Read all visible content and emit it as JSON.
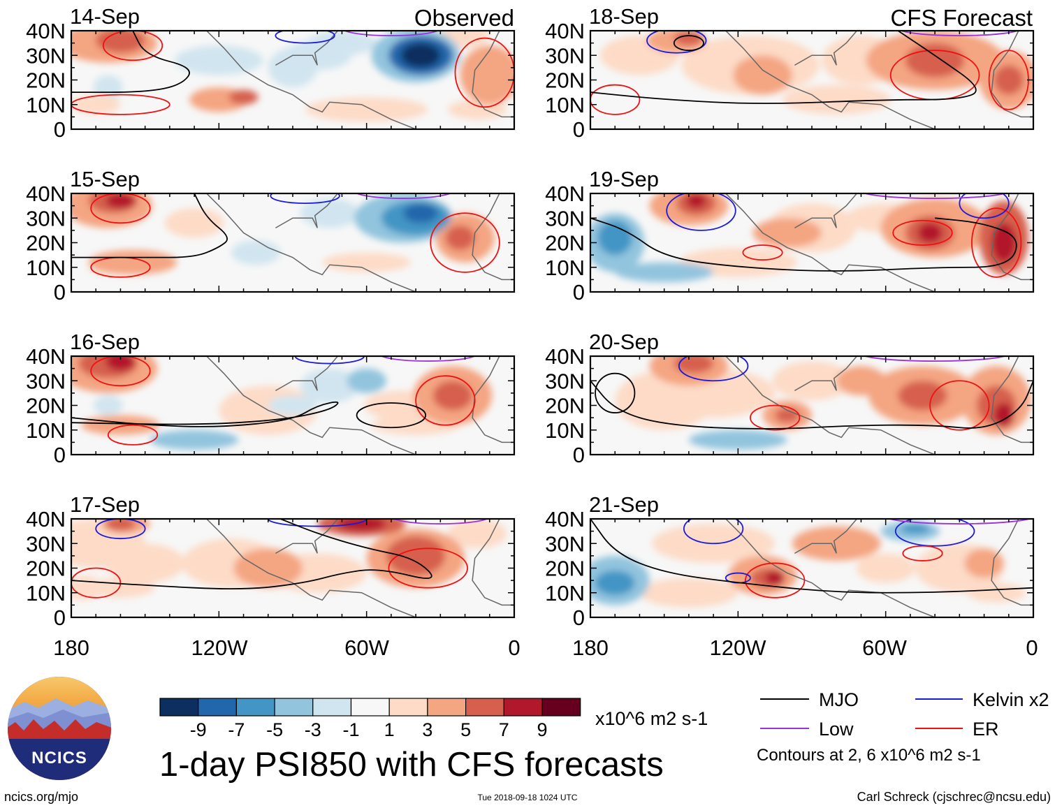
{
  "chart_data": {
    "type": "heatmap",
    "title": "1-day PSI850 with CFS forecasts",
    "observed_label": "Observed",
    "forecast_label": "CFS Forecast",
    "panels": [
      {
        "date": "14-Sep",
        "source": "observed"
      },
      {
        "date": "15-Sep",
        "source": "observed"
      },
      {
        "date": "16-Sep",
        "source": "observed"
      },
      {
        "date": "17-Sep",
        "source": "observed"
      },
      {
        "date": "18-Sep",
        "source": "forecast"
      },
      {
        "date": "19-Sep",
        "source": "forecast"
      },
      {
        "date": "20-Sep",
        "source": "forecast"
      },
      {
        "date": "21-Sep",
        "source": "forecast"
      }
    ],
    "x_axis": {
      "range": [
        180,
        0
      ],
      "ticks": [
        "180",
        "120W",
        "60W",
        "0"
      ],
      "units": "degrees longitude (W)"
    },
    "y_axis": {
      "range": [
        0,
        40
      ],
      "ticks": [
        "0",
        "10N",
        "20N",
        "30N",
        "40N"
      ],
      "units": "degrees latitude (N)"
    },
    "colorbar": {
      "units": "x10^6 m2 s-1",
      "boundaries": [
        "-9",
        "-7",
        "-5",
        "-3",
        "-1",
        "1",
        "3",
        "5",
        "7",
        "9"
      ],
      "colors": [
        "#0c2f5f",
        "#2266ab",
        "#4395c5",
        "#92c4de",
        "#d1e5f0",
        "#f7f7f7",
        "#fddbc7",
        "#f4a582",
        "#d6604d",
        "#b2182b",
        "#67001f"
      ]
    },
    "contour_legend": [
      {
        "label": "MJO",
        "color": "#000000"
      },
      {
        "label": "Kelvin x2",
        "color": "#1a1adc"
      },
      {
        "label": "Low",
        "color": "#9933dd"
      },
      {
        "label": "ER",
        "color": "#ee1111"
      }
    ],
    "contour_note": "Contours at 2, 6 x10^6 m2 s-1"
  },
  "footer": {
    "site": "ncics.org/mjo",
    "timestamp": "Tue 2018-09-18 1024 UTC",
    "author": "Carl Schreck (cjschrec@ncsu.edu)"
  },
  "logo": {
    "text": "NCICS"
  }
}
